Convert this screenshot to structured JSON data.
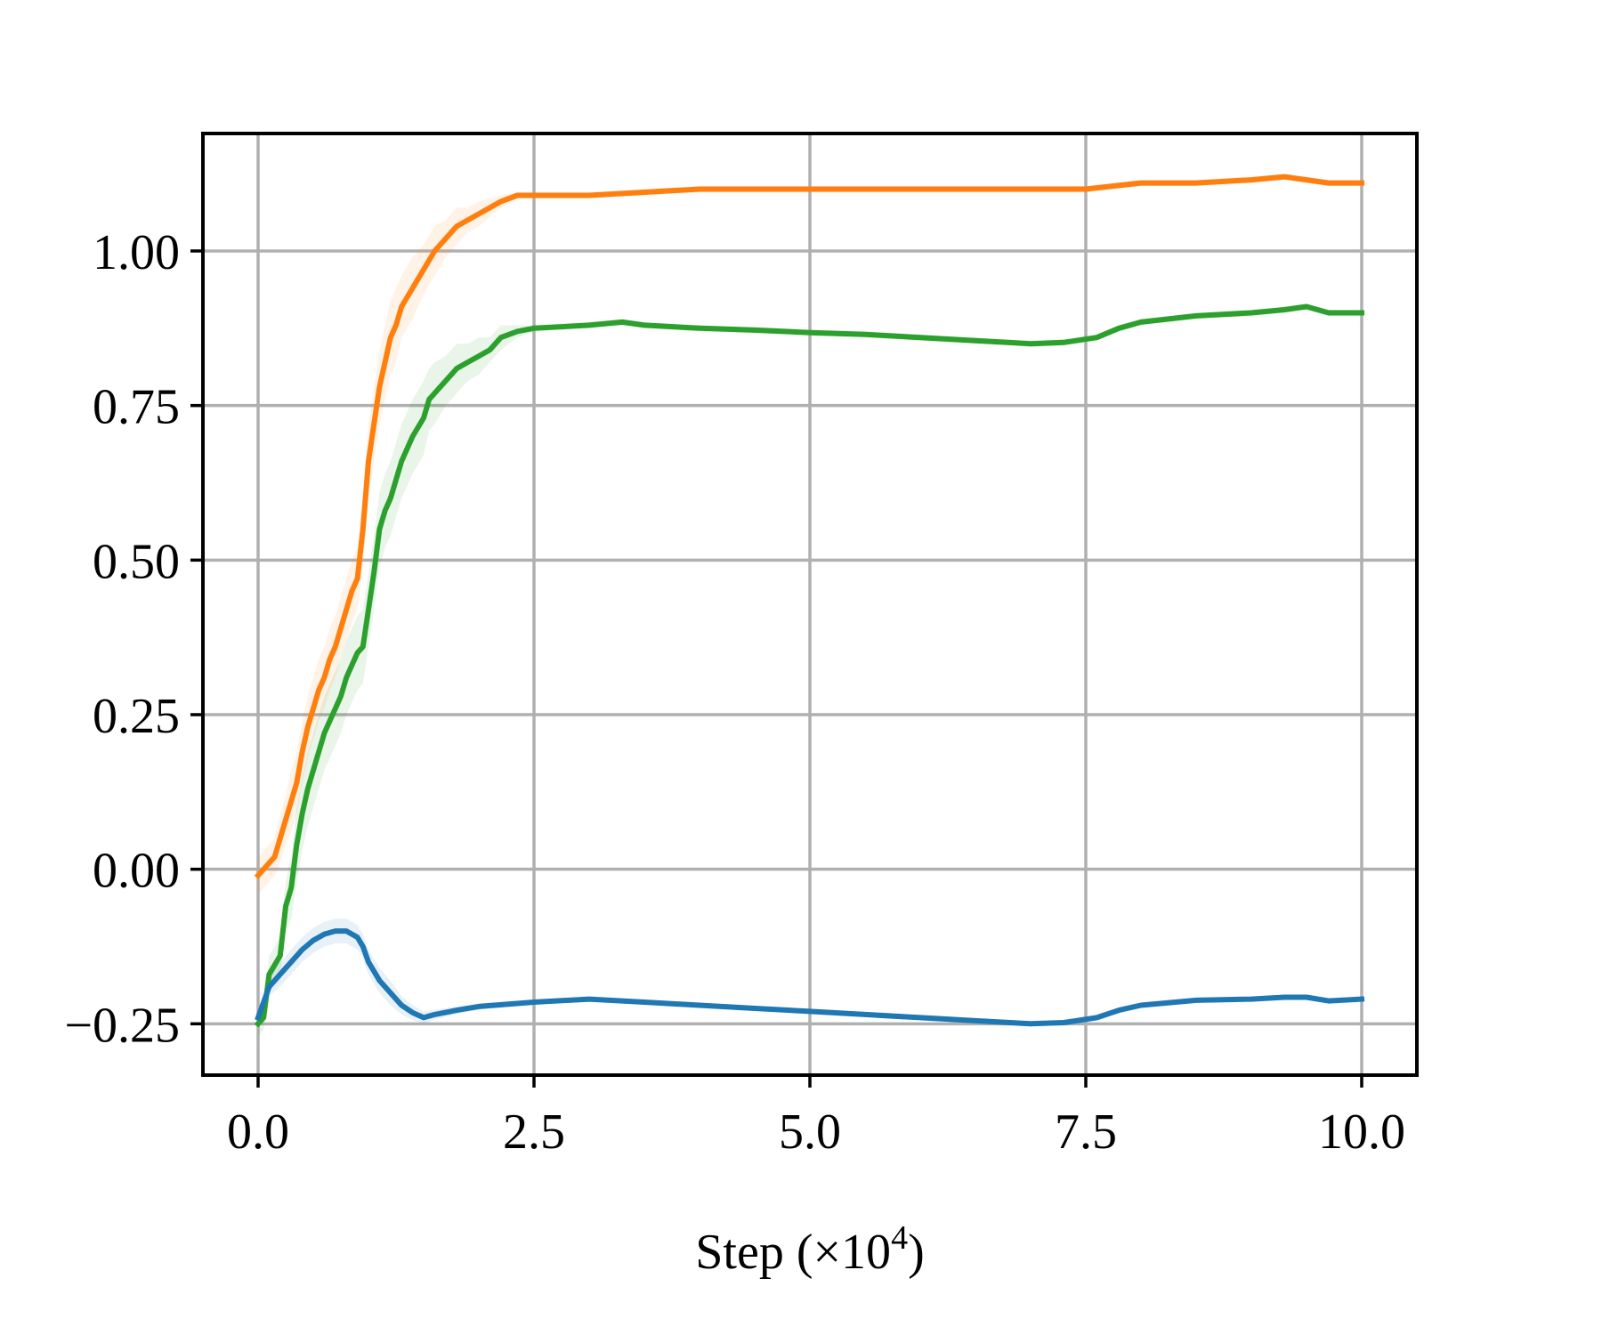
{
  "chart_data": {
    "type": "line",
    "title": "",
    "xlabel": "Step (×10",
    "xlabel_exponent": "4",
    "xlabel_close": ")",
    "ylabel": "",
    "xlim": [
      -0.5,
      10.5
    ],
    "ylim": [
      -0.333,
      1.19
    ],
    "x_ticks": [
      0.0,
      2.5,
      5.0,
      7.5,
      10.0
    ],
    "x_tick_labels": [
      "0.0",
      "2.5",
      "5.0",
      "7.5",
      "10.0"
    ],
    "y_ticks": [
      -0.25,
      0.0,
      0.25,
      0.5,
      0.75,
      1.0
    ],
    "y_tick_labels": [
      "−0.25",
      "0.00",
      "0.25",
      "0.50",
      "0.75",
      "1.00"
    ],
    "grid": true,
    "legend": false,
    "band_opacity": 0.1,
    "series": [
      {
        "color": "#ff7f0e",
        "points": [
          [
            0,
            -0.01
          ],
          [
            0.15,
            0.02
          ],
          [
            0.2,
            0.05
          ],
          [
            0.25,
            0.08
          ],
          [
            0.3,
            0.11
          ],
          [
            0.35,
            0.14
          ],
          [
            0.4,
            0.19
          ],
          [
            0.45,
            0.23
          ],
          [
            0.5,
            0.26
          ],
          [
            0.55,
            0.29
          ],
          [
            0.6,
            0.31
          ],
          [
            0.65,
            0.34
          ],
          [
            0.7,
            0.36
          ],
          [
            0.75,
            0.39
          ],
          [
            0.8,
            0.42
          ],
          [
            0.85,
            0.45
          ],
          [
            0.9,
            0.47
          ],
          [
            0.95,
            0.55
          ],
          [
            1.0,
            0.66
          ],
          [
            1.05,
            0.72
          ],
          [
            1.1,
            0.78
          ],
          [
            1.15,
            0.82
          ],
          [
            1.2,
            0.86
          ],
          [
            1.25,
            0.88
          ],
          [
            1.3,
            0.91
          ],
          [
            1.4,
            0.94
          ],
          [
            1.5,
            0.97
          ],
          [
            1.6,
            1.0
          ],
          [
            1.7,
            1.02
          ],
          [
            1.8,
            1.04
          ],
          [
            1.9,
            1.05
          ],
          [
            2.0,
            1.06
          ],
          [
            2.1,
            1.07
          ],
          [
            2.2,
            1.08
          ],
          [
            2.35,
            1.09
          ],
          [
            2.5,
            1.09
          ],
          [
            3.0,
            1.09
          ],
          [
            3.5,
            1.095
          ],
          [
            4.0,
            1.1
          ],
          [
            4.5,
            1.1
          ],
          [
            5.0,
            1.1
          ],
          [
            5.5,
            1.1
          ],
          [
            6.0,
            1.1
          ],
          [
            6.5,
            1.1
          ],
          [
            7.0,
            1.1
          ],
          [
            7.5,
            1.1
          ],
          [
            8.0,
            1.11
          ],
          [
            8.5,
            1.11
          ],
          [
            9.0,
            1.115
          ],
          [
            9.3,
            1.12
          ],
          [
            9.5,
            1.115
          ],
          [
            9.7,
            1.11
          ],
          [
            10.0,
            1.11
          ]
        ],
        "band": [
          0.03,
          0.03,
          0.04,
          0.04,
          0.05,
          0.05,
          0.05,
          0.05,
          0.05,
          0.05,
          0.05,
          0.05,
          0.05,
          0.05,
          0.05,
          0.05,
          0.05,
          0.06,
          0.06,
          0.06,
          0.06,
          0.06,
          0.06,
          0.06,
          0.05,
          0.05,
          0.04,
          0.04,
          0.03,
          0.03,
          0.02,
          0.02,
          0.015,
          0.01,
          0.005,
          0.005,
          0.005,
          0.005,
          0.005,
          0.005,
          0.005,
          0.005,
          0.005,
          0.005,
          0.005,
          0.005,
          0.005,
          0.005,
          0.005,
          0.005,
          0.005,
          0.005,
          0.005
        ]
      },
      {
        "color": "#2ca02c",
        "points": [
          [
            0,
            -0.25
          ],
          [
            0.05,
            -0.24
          ],
          [
            0.1,
            -0.17
          ],
          [
            0.2,
            -0.14
          ],
          [
            0.25,
            -0.06
          ],
          [
            0.3,
            -0.03
          ],
          [
            0.35,
            0.04
          ],
          [
            0.4,
            0.09
          ],
          [
            0.45,
            0.13
          ],
          [
            0.5,
            0.16
          ],
          [
            0.55,
            0.19
          ],
          [
            0.6,
            0.22
          ],
          [
            0.65,
            0.24
          ],
          [
            0.7,
            0.26
          ],
          [
            0.75,
            0.28
          ],
          [
            0.8,
            0.31
          ],
          [
            0.85,
            0.33
          ],
          [
            0.9,
            0.35
          ],
          [
            0.95,
            0.36
          ],
          [
            1.0,
            0.42
          ],
          [
            1.05,
            0.48
          ],
          [
            1.1,
            0.55
          ],
          [
            1.15,
            0.58
          ],
          [
            1.2,
            0.6
          ],
          [
            1.25,
            0.63
          ],
          [
            1.3,
            0.66
          ],
          [
            1.4,
            0.7
          ],
          [
            1.5,
            0.73
          ],
          [
            1.55,
            0.76
          ],
          [
            1.6,
            0.77
          ],
          [
            1.7,
            0.79
          ],
          [
            1.8,
            0.81
          ],
          [
            1.9,
            0.82
          ],
          [
            2.0,
            0.83
          ],
          [
            2.1,
            0.84
          ],
          [
            2.2,
            0.86
          ],
          [
            2.35,
            0.87
          ],
          [
            2.5,
            0.875
          ],
          [
            3.0,
            0.88
          ],
          [
            3.3,
            0.885
          ],
          [
            3.5,
            0.88
          ],
          [
            4.0,
            0.875
          ],
          [
            4.5,
            0.872
          ],
          [
            5.0,
            0.868
          ],
          [
            5.5,
            0.865
          ],
          [
            6.0,
            0.86
          ],
          [
            6.5,
            0.855
          ],
          [
            7.0,
            0.85
          ],
          [
            7.3,
            0.852
          ],
          [
            7.6,
            0.86
          ],
          [
            7.8,
            0.875
          ],
          [
            8.0,
            0.885
          ],
          [
            8.5,
            0.895
          ],
          [
            9.0,
            0.9
          ],
          [
            9.3,
            0.905
          ],
          [
            9.5,
            0.91
          ],
          [
            9.7,
            0.9
          ],
          [
            10.0,
            0.9
          ]
        ],
        "band": [
          0.02,
          0.02,
          0.03,
          0.03,
          0.04,
          0.05,
          0.06,
          0.06,
          0.06,
          0.06,
          0.06,
          0.06,
          0.06,
          0.06,
          0.06,
          0.06,
          0.06,
          0.06,
          0.06,
          0.06,
          0.06,
          0.06,
          0.06,
          0.06,
          0.06,
          0.06,
          0.06,
          0.06,
          0.05,
          0.05,
          0.04,
          0.04,
          0.03,
          0.03,
          0.02,
          0.02,
          0.01,
          0.005,
          0.005,
          0.005,
          0.005,
          0.005,
          0.005,
          0.005,
          0.005,
          0.005,
          0.005,
          0.005,
          0.005,
          0.005,
          0.005,
          0.005,
          0.005,
          0.005,
          0.005,
          0.005,
          0.005,
          0.005
        ]
      },
      {
        "color": "#1f77b4",
        "points": [
          [
            0,
            -0.24
          ],
          [
            0.1,
            -0.19
          ],
          [
            0.2,
            -0.17
          ],
          [
            0.3,
            -0.15
          ],
          [
            0.4,
            -0.13
          ],
          [
            0.5,
            -0.115
          ],
          [
            0.6,
            -0.105
          ],
          [
            0.7,
            -0.1
          ],
          [
            0.8,
            -0.1
          ],
          [
            0.9,
            -0.11
          ],
          [
            0.95,
            -0.125
          ],
          [
            1.0,
            -0.15
          ],
          [
            1.1,
            -0.18
          ],
          [
            1.2,
            -0.2
          ],
          [
            1.3,
            -0.22
          ],
          [
            1.4,
            -0.232
          ],
          [
            1.5,
            -0.24
          ],
          [
            1.6,
            -0.235
          ],
          [
            1.8,
            -0.228
          ],
          [
            2.0,
            -0.222
          ],
          [
            2.5,
            -0.215
          ],
          [
            3.0,
            -0.21
          ],
          [
            3.5,
            -0.215
          ],
          [
            4.0,
            -0.22
          ],
          [
            4.5,
            -0.225
          ],
          [
            5.0,
            -0.23
          ],
          [
            5.5,
            -0.235
          ],
          [
            6.0,
            -0.24
          ],
          [
            6.5,
            -0.245
          ],
          [
            7.0,
            -0.25
          ],
          [
            7.3,
            -0.248
          ],
          [
            7.6,
            -0.24
          ],
          [
            7.8,
            -0.228
          ],
          [
            8.0,
            -0.22
          ],
          [
            8.5,
            -0.212
          ],
          [
            9.0,
            -0.21
          ],
          [
            9.3,
            -0.207
          ],
          [
            9.5,
            -0.207
          ],
          [
            9.7,
            -0.213
          ],
          [
            10.0,
            -0.21
          ]
        ],
        "band": [
          0.01,
          0.015,
          0.02,
          0.02,
          0.02,
          0.02,
          0.02,
          0.02,
          0.02,
          0.02,
          0.02,
          0.02,
          0.02,
          0.02,
          0.015,
          0.012,
          0.01,
          0.008,
          0.006,
          0.005,
          0.004,
          0.004,
          0.004,
          0.004,
          0.004,
          0.004,
          0.004,
          0.004,
          0.004,
          0.004,
          0.004,
          0.004,
          0.004,
          0.004,
          0.004,
          0.004,
          0.004,
          0.004,
          0.004,
          0.004
        ]
      }
    ]
  }
}
